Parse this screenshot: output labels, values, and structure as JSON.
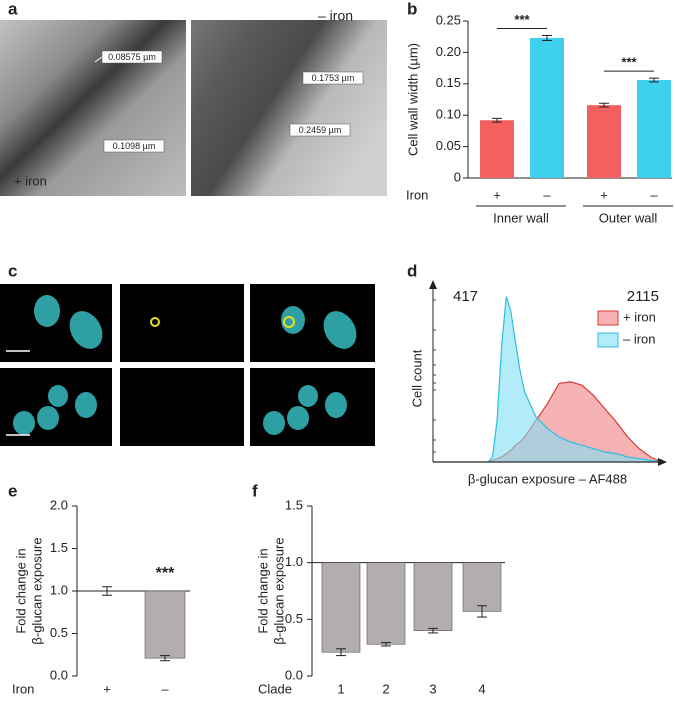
{
  "figure_a": {
    "panel_label": "a",
    "left": {
      "labels": [
        "0.08575 µm",
        "0.1098 µm"
      ],
      "caption": "+ iron"
    },
    "right": {
      "labels": [
        "0.1753 µm",
        "0.2459 µm"
      ],
      "caption": "– iron"
    }
  },
  "figure_c": {
    "panel_label": "c"
  },
  "chart_data": [
    {
      "type": "bar",
      "panel_label": "b",
      "y_label_lines": [
        "Cell wall width (µm)"
      ],
      "categories": [
        "+",
        "–",
        "+",
        "–"
      ],
      "x_row_label": "Iron",
      "groups": [
        "Inner wall",
        "Outer wall"
      ],
      "values": [
        0.092,
        0.223,
        0.116,
        0.156
      ],
      "errors": [
        0.003,
        0.004,
        0.003,
        0.003
      ],
      "colors": [
        "#f4605f",
        "#3fd0f0",
        "#f4605f",
        "#3fd0f0"
      ],
      "annotations": [
        "***",
        "***"
      ],
      "ylim": [
        0,
        0.25
      ],
      "yticks": [
        0,
        0.05,
        {
          "value": 0.1,
          "label": "0.10"
        },
        0.15,
        {
          "value": 0.2,
          "label": "0.20"
        },
        0.25
      ]
    },
    {
      "type": "area",
      "panel_label": "d",
      "y_label": "Cell count",
      "x_label": "β-glucan exposure – AF488",
      "x": [
        0,
        10,
        20,
        24,
        26,
        28,
        30,
        32,
        34,
        36,
        38,
        40,
        45,
        50,
        55,
        60,
        65,
        70,
        75,
        80,
        85,
        90,
        95,
        100
      ],
      "xlim": [
        0,
        100
      ],
      "ylim": [
        0,
        100
      ],
      "series": [
        {
          "name": "+ iron",
          "color": "#d93a36",
          "fill": "#f27f80",
          "values": [
            0,
            0,
            0,
            0,
            1,
            2,
            3,
            5,
            7,
            10,
            12,
            15,
            25,
            35,
            47,
            48,
            46,
            40,
            32,
            24,
            15,
            8,
            3,
            0
          ]
        },
        {
          "name": "– iron",
          "color": "#2bbde3",
          "fill": "#7fe0f5",
          "values": [
            0,
            0,
            0,
            0,
            3,
            25,
            70,
            99,
            90,
            72,
            55,
            42,
            27,
            20,
            15,
            12,
            10,
            8,
            6,
            5,
            3,
            2,
            1,
            0
          ]
        }
      ],
      "annotations": [
        {
          "text": "417",
          "color": "#2bb0d8"
        },
        {
          "text": "2115",
          "color": "#c8262a"
        }
      ]
    },
    {
      "type": "bar",
      "panel_label": "e",
      "y_label_lines": [
        "Fold change in",
        "β-glucan exposure"
      ],
      "categories": [
        "+",
        "–"
      ],
      "x_row_label": "Iron",
      "values": [
        1.0,
        0.21
      ],
      "errors": [
        0.05,
        0.03
      ],
      "color": "#b3adad",
      "reference_line": 1,
      "annotations": [
        "***"
      ],
      "ylim": [
        0,
        2
      ],
      "yticks": [
        {
          "value": 0,
          "label": "0.0"
        },
        0.5,
        {
          "value": 1,
          "label": "1.0"
        },
        1.5,
        {
          "value": 2,
          "label": "2.0"
        }
      ]
    },
    {
      "type": "bar",
      "panel_label": "f",
      "y_label_lines": [
        "Fold change in",
        "β-glucan exposure"
      ],
      "categories": [
        "1",
        "2",
        "3",
        "4"
      ],
      "x_row_label": "Clade",
      "values": [
        0.21,
        0.28,
        0.4,
        0.57
      ],
      "errors": [
        0.03,
        0.015,
        0.02,
        0.05
      ],
      "color": "#b3adad",
      "reference_line": 1,
      "ylim": [
        0,
        1.5
      ],
      "yticks": [
        {
          "value": 0,
          "label": "0.0"
        },
        0.5,
        {
          "value": 1,
          "label": "1.0"
        },
        1.5
      ]
    }
  ]
}
